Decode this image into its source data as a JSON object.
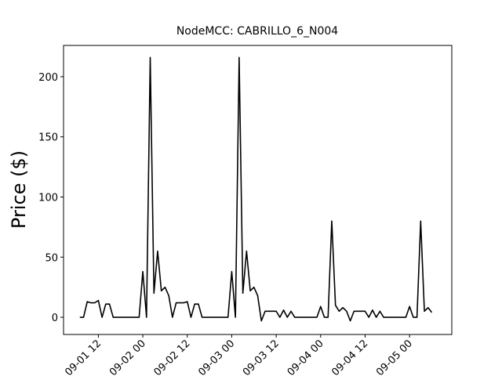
{
  "chart_data": {
    "type": "line",
    "title": "NodeMCC: CABRILLO_6_N004",
    "ylabel": "Price ($)",
    "color": "#000000",
    "x": [
      7,
      8,
      9,
      10,
      11,
      12,
      13,
      14,
      15,
      16,
      17,
      18,
      19,
      20,
      21,
      22,
      23,
      24,
      25,
      26,
      27,
      28,
      29,
      30,
      31,
      32,
      33,
      34,
      35,
      36,
      37,
      38,
      39,
      40,
      41,
      42,
      43,
      44,
      45,
      46,
      47,
      48,
      49,
      50,
      51,
      52,
      53,
      54,
      55,
      56,
      57,
      58,
      59,
      60,
      61,
      62,
      63,
      64,
      65,
      66,
      67,
      68,
      69,
      70,
      71,
      72,
      73,
      74,
      75,
      76,
      77,
      78,
      79,
      80,
      81,
      82,
      83,
      84,
      85,
      86,
      87,
      88,
      89,
      90,
      91,
      92,
      93,
      94,
      95,
      96,
      97,
      98,
      99,
      100,
      101,
      102
    ],
    "values": [
      0,
      0,
      13,
      12,
      12,
      14,
      0,
      11,
      11,
      0,
      0,
      0,
      0,
      0,
      0,
      0,
      0,
      38,
      0,
      216,
      20,
      55,
      22,
      25,
      18,
      0,
      12,
      12,
      12,
      13,
      0,
      11,
      11,
      0,
      0,
      0,
      0,
      0,
      0,
      0,
      0,
      38,
      0,
      216,
      20,
      55,
      22,
      25,
      18,
      -3,
      5,
      5,
      5,
      5,
      0,
      6,
      0,
      5,
      0,
      0,
      0,
      0,
      0,
      0,
      0,
      9,
      0,
      0,
      80,
      10,
      5,
      8,
      5,
      -3,
      5,
      5,
      5,
      5,
      0,
      6,
      0,
      5,
      0,
      0,
      0,
      0,
      0,
      0,
      0,
      9,
      0,
      0,
      80,
      5,
      8,
      4
    ],
    "xlim": [
      2.6,
      107.4
    ],
    "ylim": [
      -14.3,
      226
    ],
    "xticks": [
      {
        "value": 12,
        "label": "09-01 12"
      },
      {
        "value": 24,
        "label": "09-02 00"
      },
      {
        "value": 36,
        "label": "09-02 12"
      },
      {
        "value": 48,
        "label": "09-03 00"
      },
      {
        "value": 60,
        "label": "09-03 12"
      },
      {
        "value": 72,
        "label": "09-04 00"
      },
      {
        "value": 84,
        "label": "09-04 12"
      },
      {
        "value": 96,
        "label": "09-05 00"
      }
    ],
    "yticks": [
      0,
      50,
      100,
      150,
      200
    ]
  }
}
